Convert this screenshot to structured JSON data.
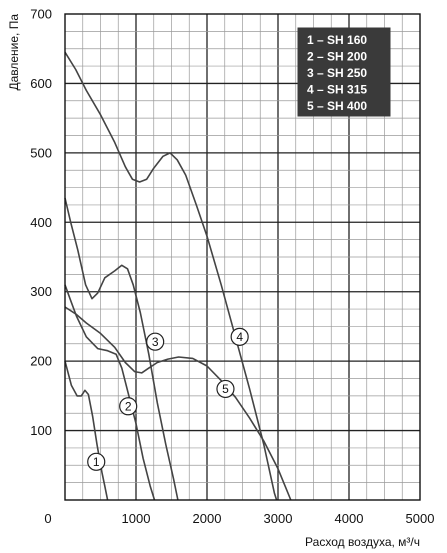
{
  "chart_data": {
    "type": "line",
    "xlabel": "Расход воздуха, м³/ч",
    "ylabel": "Давление, Па",
    "xlim": [
      0,
      5000
    ],
    "ylim": [
      0,
      700
    ],
    "x_ticks": [
      "0",
      "1000",
      "2000",
      "3000",
      "4000",
      "5000"
    ],
    "y_ticks": [
      "100",
      "200",
      "300",
      "400",
      "500",
      "600",
      "700"
    ],
    "grid": true,
    "legend_position": "top-right",
    "legend": [
      "1 – SH 160",
      "2 – SH 200",
      "3 – SH 250",
      "4 – SH 315",
      "5 – SH 400"
    ],
    "series": [
      {
        "name": "1",
        "points": [
          [
            0,
            200
          ],
          [
            90,
            165
          ],
          [
            170,
            150
          ],
          [
            230,
            150
          ],
          [
            280,
            158
          ],
          [
            330,
            152
          ],
          [
            390,
            120
          ],
          [
            450,
            80
          ],
          [
            520,
            40
          ],
          [
            560,
            20
          ],
          [
            600,
            0
          ]
        ],
        "label_at": [
          440,
          55
        ]
      },
      {
        "name": "2",
        "points": [
          [
            0,
            310
          ],
          [
            70,
            290
          ],
          [
            160,
            265
          ],
          [
            300,
            235
          ],
          [
            460,
            218
          ],
          [
            600,
            215
          ],
          [
            720,
            210
          ],
          [
            800,
            190
          ],
          [
            900,
            150
          ],
          [
            1000,
            110
          ],
          [
            1100,
            60
          ],
          [
            1200,
            20
          ],
          [
            1260,
            0
          ]
        ],
        "label_at": [
          890,
          135
        ]
      },
      {
        "name": "3",
        "points": [
          [
            0,
            435
          ],
          [
            80,
            400
          ],
          [
            180,
            360
          ],
          [
            290,
            310
          ],
          [
            380,
            290
          ],
          [
            460,
            298
          ],
          [
            560,
            320
          ],
          [
            700,
            330
          ],
          [
            800,
            338
          ],
          [
            880,
            333
          ],
          [
            960,
            310
          ],
          [
            1060,
            270
          ],
          [
            1180,
            210
          ],
          [
            1300,
            140
          ],
          [
            1420,
            80
          ],
          [
            1530,
            30
          ],
          [
            1590,
            0
          ]
        ],
        "label_at": [
          1270,
          228
        ]
      },
      {
        "name": "4",
        "points": [
          [
            0,
            645
          ],
          [
            150,
            620
          ],
          [
            300,
            590
          ],
          [
            500,
            555
          ],
          [
            700,
            515
          ],
          [
            850,
            480
          ],
          [
            950,
            462
          ],
          [
            1050,
            458
          ],
          [
            1150,
            462
          ],
          [
            1250,
            478
          ],
          [
            1380,
            495
          ],
          [
            1480,
            500
          ],
          [
            1580,
            490
          ],
          [
            1700,
            468
          ],
          [
            1850,
            425
          ],
          [
            2000,
            380
          ],
          [
            2200,
            310
          ],
          [
            2400,
            235
          ],
          [
            2600,
            160
          ],
          [
            2800,
            80
          ],
          [
            2950,
            10
          ],
          [
            2980,
            0
          ]
        ],
        "label_at": [
          2460,
          235
        ]
      },
      {
        "name": "5",
        "points": [
          [
            0,
            278
          ],
          [
            150,
            268
          ],
          [
            300,
            255
          ],
          [
            500,
            240
          ],
          [
            700,
            220
          ],
          [
            850,
            198
          ],
          [
            980,
            185
          ],
          [
            1080,
            183
          ],
          [
            1180,
            190
          ],
          [
            1300,
            198
          ],
          [
            1450,
            203
          ],
          [
            1600,
            206
          ],
          [
            1800,
            204
          ],
          [
            2000,
            193
          ],
          [
            2200,
            172
          ],
          [
            2400,
            148
          ],
          [
            2600,
            118
          ],
          [
            2800,
            85
          ],
          [
            3000,
            45
          ],
          [
            3100,
            20
          ],
          [
            3180,
            0
          ]
        ],
        "label_at": [
          2260,
          160
        ]
      }
    ]
  }
}
